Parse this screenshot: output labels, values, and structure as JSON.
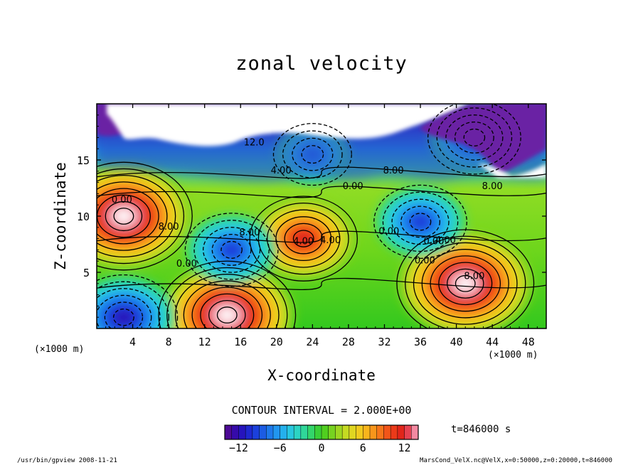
{
  "chart_data": {
    "type": "heatmap",
    "title": "zonal velocity",
    "xlabel": "X-coordinate",
    "ylabel": "Z-coordinate",
    "x_unit_left": "(×1000 m)",
    "x_unit_right": "(×1000 m)",
    "x_ticks": [
      "4",
      "8",
      "12",
      "16",
      "20",
      "24",
      "28",
      "32",
      "36",
      "40",
      "44",
      "48"
    ],
    "y_ticks": [
      "5",
      "10",
      "15"
    ],
    "xlim": [
      0,
      50
    ],
    "ylim": [
      0,
      20
    ],
    "contour_interval_text": "CONTOUR INTERVAL = 2.000E+00",
    "contour_labels": [
      "12.0",
      "4.00",
      "8.00",
      "0.00",
      "0.00",
      "8.00",
      "4.00",
      "0.00",
      "0.00",
      "8.00",
      "4.00",
      "0.00",
      "4.00",
      "8.00",
      "8.00",
      "0.00"
    ],
    "colorbar": {
      "range": [
        -14,
        14
      ],
      "ticks": [
        "−12",
        "−6",
        "0",
        "6",
        "12"
      ]
    },
    "time_label": "t=846000 s",
    "footer_left": "/usr/bin/gpview  2008-11-21",
    "footer_right": "MarsCond_VelX.nc@VelX,x=0:50000,z=0:20000,t=846000",
    "features": [
      {
        "x": 3,
        "z": 10,
        "value": 16
      },
      {
        "x": 14.5,
        "z": 1.2,
        "value": 16
      },
      {
        "x": 41,
        "z": 4,
        "value": 15
      },
      {
        "x": 23,
        "z": 8,
        "value": 11
      },
      {
        "x": 15,
        "z": 7,
        "value": -9
      },
      {
        "x": 36,
        "z": 9.5,
        "value": -10
      },
      {
        "x": 3,
        "z": 1,
        "value": -11
      },
      {
        "x": 24,
        "z": 15.5,
        "value": -7
      },
      {
        "x": 42,
        "z": 17,
        "value": -9
      }
    ]
  }
}
